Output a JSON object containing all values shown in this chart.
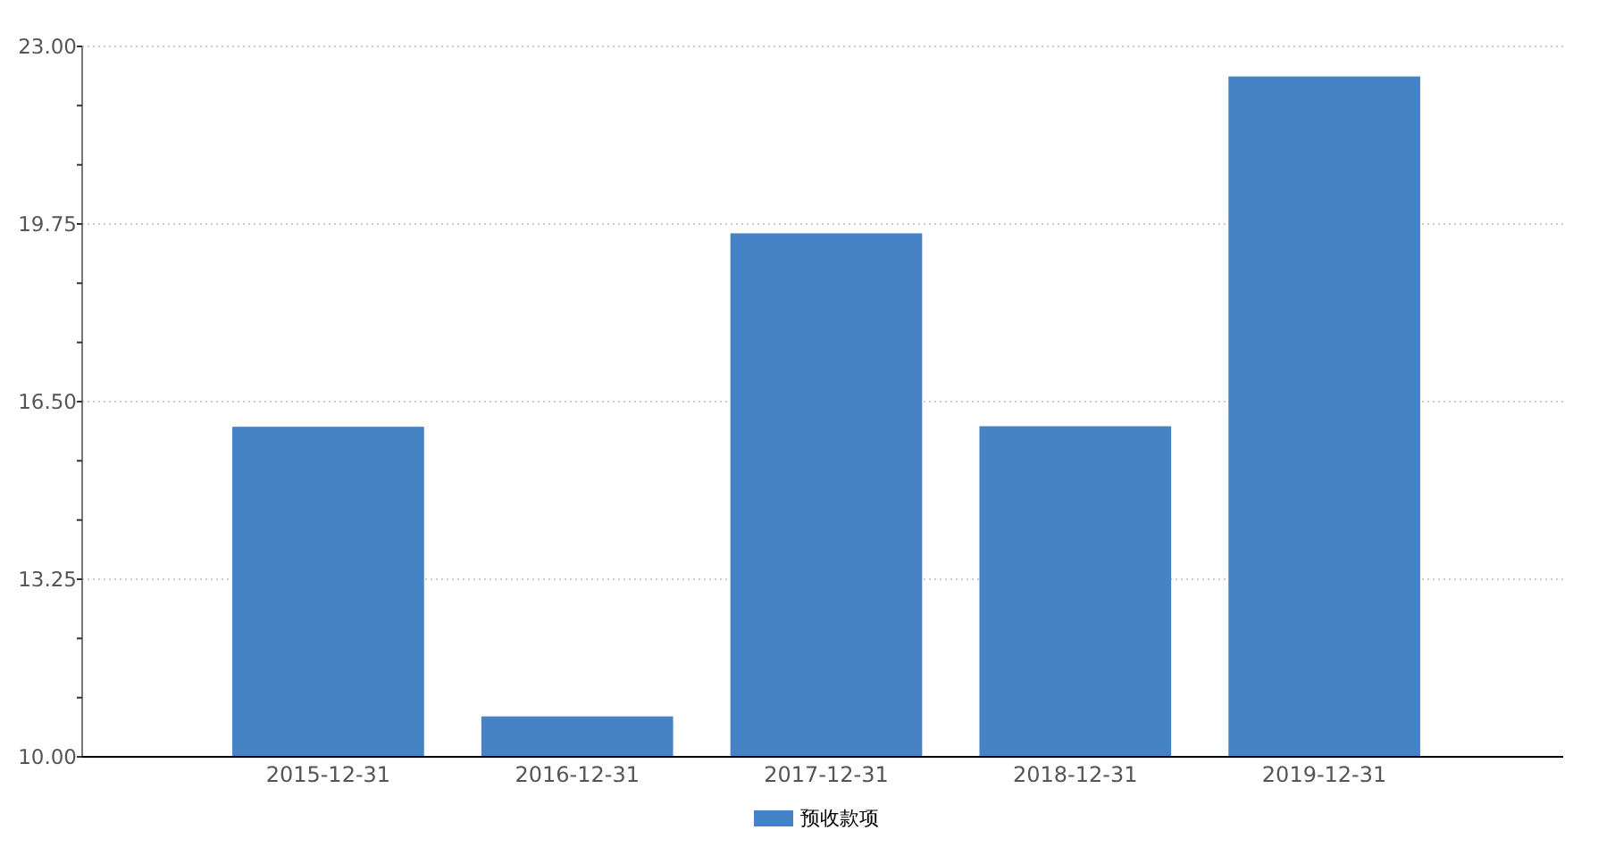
{
  "chart_data": {
    "type": "bar",
    "categories": [
      "2015-12-31",
      "2016-12-31",
      "2017-12-31",
      "2018-12-31",
      "2019-12-31"
    ],
    "series": [
      {
        "name": "预收款项",
        "color": "#4683c6",
        "values": [
          16.04,
          10.74,
          19.58,
          16.05,
          22.45
        ]
      }
    ],
    "ylim": [
      10,
      23
    ],
    "yticks": [
      {
        "value": 10,
        "label": "10.00"
      },
      {
        "value": 11.083,
        "label": null
      },
      {
        "value": 12.167,
        "label": null
      },
      {
        "value": 13.25,
        "label": "13.25"
      },
      {
        "value": 14.333,
        "label": null
      },
      {
        "value": 15.417,
        "label": null
      },
      {
        "value": 16.5,
        "label": "16.50"
      },
      {
        "value": 17.583,
        "label": null
      },
      {
        "value": 18.667,
        "label": null
      },
      {
        "value": 19.75,
        "label": "19.75"
      },
      {
        "value": 20.833,
        "label": null
      },
      {
        "value": 21.917,
        "label": null
      },
      {
        "value": 23,
        "label": "23.00"
      }
    ],
    "grid": "y",
    "legend": "bottom"
  }
}
